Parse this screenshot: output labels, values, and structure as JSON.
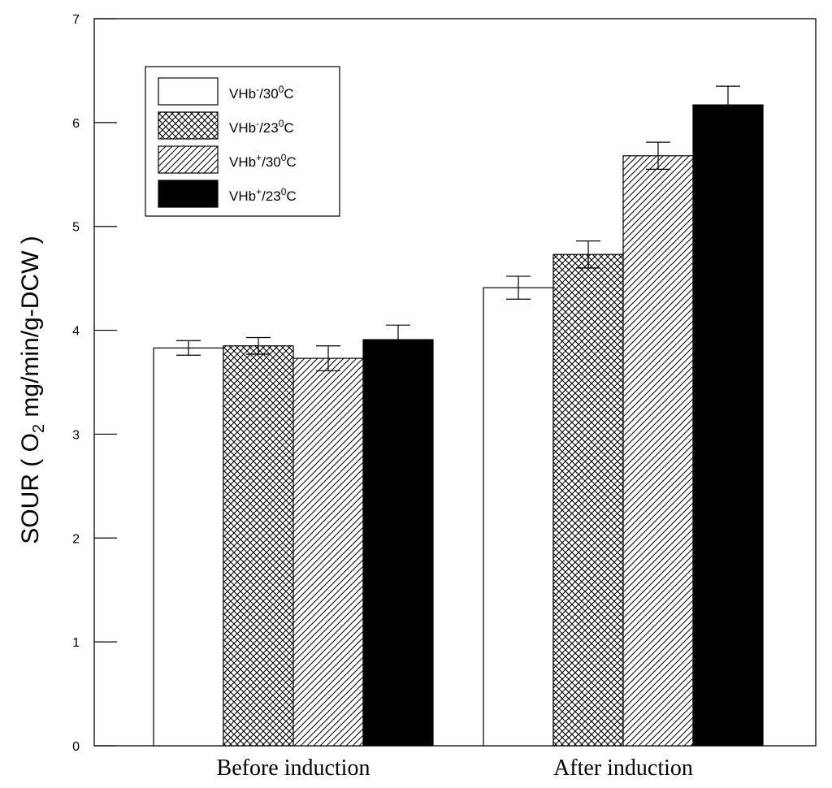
{
  "chart_data": {
    "type": "bar",
    "title": "",
    "xlabel": "",
    "ylabel": "SOUR ( O2 mg/min/g-DCW )",
    "ylabel_parts": {
      "prefix": "SOUR ( O",
      "subscript": "2",
      "suffix": " mg/min/g-DCW )"
    },
    "ylim": [
      0,
      7
    ],
    "yticks": [
      0,
      1,
      2,
      3,
      4,
      5,
      6,
      7
    ],
    "categories": [
      "Before induction",
      "After induction"
    ],
    "legend_position": "top-left",
    "series": [
      {
        "name": "VHb-/30oC",
        "label_parts": [
          "VHb",
          "-",
          "/30",
          "0",
          "C"
        ],
        "pattern": "white",
        "values": [
          3.83,
          4.41
        ],
        "errors": [
          0.07,
          0.11
        ]
      },
      {
        "name": "VHb-/23oC",
        "label_parts": [
          "VHb",
          "-",
          "/23",
          "0",
          "C"
        ],
        "pattern": "crosshatch",
        "values": [
          3.85,
          4.73
        ],
        "errors": [
          0.08,
          0.13
        ]
      },
      {
        "name": "VHb+/30oC",
        "label_parts": [
          "VHb",
          "+",
          "/30",
          "0",
          "C"
        ],
        "pattern": "diagonal",
        "values": [
          3.73,
          5.68
        ],
        "errors": [
          0.12,
          0.13
        ]
      },
      {
        "name": "VHb+/23oC",
        "label_parts": [
          "VHb",
          "+",
          "/23",
          "0",
          "C"
        ],
        "pattern": "black",
        "values": [
          3.91,
          6.17
        ],
        "errors": [
          0.14,
          0.18
        ]
      }
    ]
  }
}
